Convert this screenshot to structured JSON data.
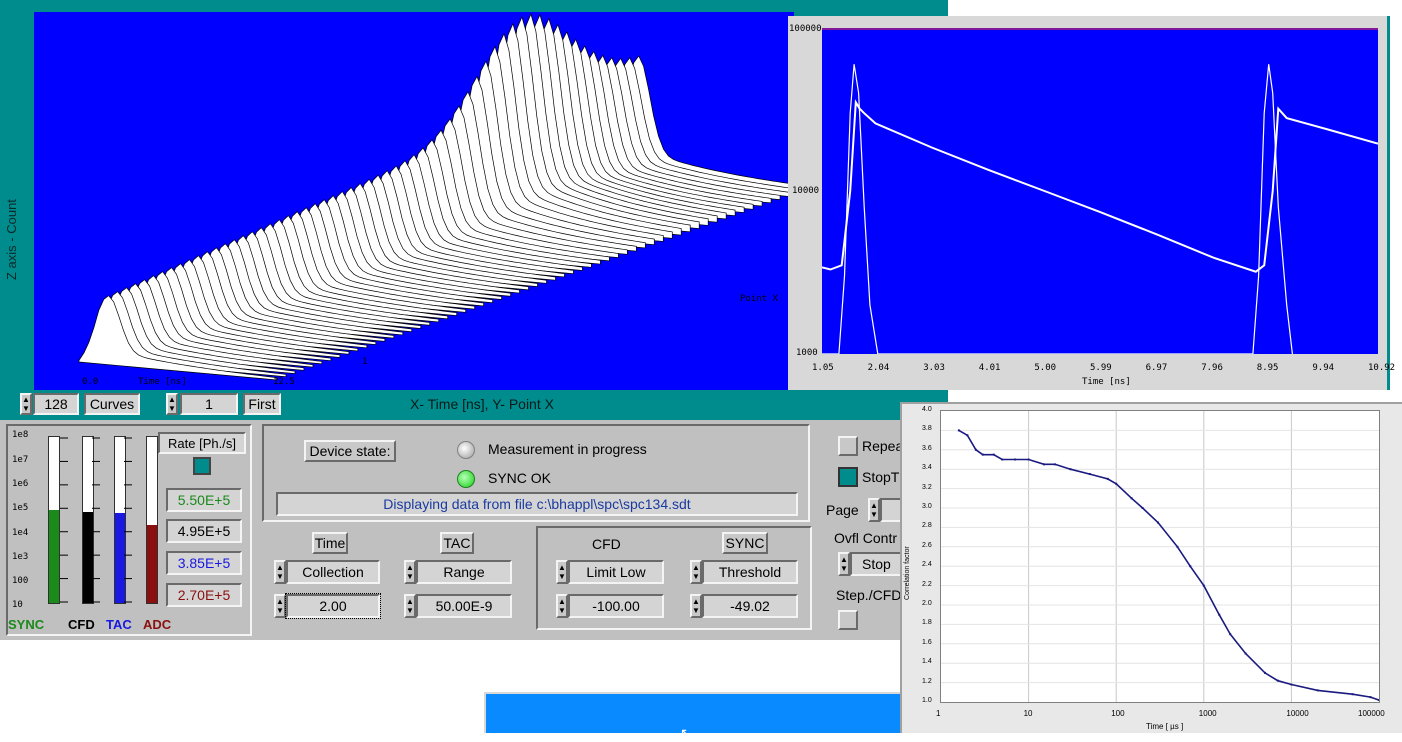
{
  "surface_plot": {
    "zaxis_label": "Z axis - Count",
    "pointx_label": "Point X",
    "tick_1": "1",
    "x_ticks": [
      "0.0",
      "Time [ns]",
      "12.5"
    ],
    "curves_value": "128",
    "curves_label": "Curves",
    "first_value": "1",
    "first_label": "First",
    "axes_caption": "X- Time [ns], Y- Point X"
  },
  "rate_meters": {
    "y_ticks": [
      "1e8",
      "1e7",
      "1e6",
      "1e5",
      "1e4",
      "1e3",
      "100",
      "10"
    ],
    "labels": [
      "SYNC",
      "CFD",
      "TAC",
      "ADC"
    ],
    "colors": [
      "#1a8a1a",
      "#000000",
      "#1818e0",
      "#8a1010"
    ],
    "levels": [
      0.56,
      0.55,
      0.54,
      0.47
    ],
    "rate_title": "Rate [Ph./s]",
    "rate_values": [
      "5.50E+5",
      "4.95E+5",
      "3.85E+5",
      "2.70E+5"
    ],
    "rate_colors": [
      "#1a8a1a",
      "#000000",
      "#1818e0",
      "#8a1010"
    ]
  },
  "device": {
    "state_button": "Device state:",
    "measurement": "Measurement in progress",
    "sync_ok": "SYNC OK",
    "file_msg": "Displaying data from file c:\\bhappl\\spc\\spc134.sdt"
  },
  "params": {
    "time_title": "Time",
    "time_mode": "Collection",
    "time_value": "2.00",
    "tac_title": "TAC",
    "tac_mode": "Range",
    "tac_value": "50.00E-9",
    "cfd_title": "CFD",
    "cfd_mode": "Limit Low",
    "cfd_value": "-100.00",
    "sync_title": "SYNC",
    "sync_mode": "Threshold",
    "sync_value": "-49.02"
  },
  "right_controls": {
    "repeat": "Repea",
    "stop": "StopT",
    "page": "Page",
    "ovfl": "Ovfl Contr",
    "ovfl_value": "Stop",
    "step": "Step./CFD"
  },
  "decay_chart": {
    "xlabel": "Time [ns]",
    "x_ticks": [
      "1.05",
      "2.04",
      "3.03",
      "4.01",
      "5.00",
      "5.99",
      "6.97",
      "7.96",
      "8.95",
      "9.94",
      "10.92"
    ],
    "y_ticks": [
      "100000",
      "10000",
      "1000"
    ]
  },
  "correlation_chart": {
    "ylabel": "Correlation factor",
    "xlabel": "Time [ µs ]",
    "y_ticks": [
      "4.0",
      "3.8",
      "3.6",
      "3.4",
      "3.2",
      "3.0",
      "2.8",
      "2.6",
      "2.4",
      "2.2",
      "2.0",
      "1.8",
      "1.6",
      "1.4",
      "1.2",
      "1.0"
    ],
    "x_ticks": [
      "1",
      "10",
      "100",
      "1000",
      "10000",
      "100000"
    ]
  },
  "chart_data": [
    {
      "type": "line",
      "xlabel": "Time [ns]",
      "ylabel": "",
      "y_scale": "log",
      "ylim": [
        1000,
        100000
      ],
      "xlim": [
        1.05,
        10.92
      ],
      "series": [
        {
          "x": [
            1.05,
            1.2,
            1.4,
            1.55,
            1.65,
            1.72,
            1.8,
            2.0,
            3.0,
            4.0,
            5.0,
            6.0,
            7.0,
            8.0,
            8.75,
            8.9,
            9.05,
            9.15,
            9.3,
            10.0,
            10.92
          ],
          "y": [
            3400,
            3300,
            3500,
            10000,
            35000,
            32000,
            30000,
            26000,
            18500,
            13500,
            10000,
            7400,
            5400,
            3900,
            3200,
            3500,
            10000,
            32000,
            28000,
            24000,
            19500
          ]
        },
        {
          "x": [
            1.05,
            1.35,
            1.45,
            1.55,
            1.62,
            1.7,
            1.8,
            1.9,
            2.04,
            8.7,
            8.8,
            8.9,
            8.98,
            9.05,
            9.15,
            9.3,
            9.4
          ],
          "y": [
            1000,
            1000,
            3000,
            30000,
            60000,
            40000,
            8000,
            2000,
            1000,
            1000,
            3000,
            30000,
            60000,
            40000,
            8000,
            2000,
            1000
          ]
        }
      ]
    },
    {
      "type": "scatter",
      "xlabel": "Time [ µs ]",
      "ylabel": "Correlation factor",
      "x_scale": "log",
      "xlim": [
        1,
        100000
      ],
      "ylim": [
        1.0,
        4.0
      ],
      "series": [
        {
          "x": [
            1.6,
            2,
            2.5,
            3,
            4,
            5,
            7,
            10,
            15,
            20,
            30,
            50,
            80,
            100,
            150,
            200,
            300,
            500,
            700,
            1000,
            1500,
            2000,
            3000,
            5000,
            7000,
            10000,
            20000,
            50000,
            80000,
            100000
          ],
          "y": [
            3.8,
            3.75,
            3.6,
            3.55,
            3.55,
            3.5,
            3.5,
            3.5,
            3.45,
            3.45,
            3.4,
            3.35,
            3.3,
            3.25,
            3.1,
            3.0,
            2.85,
            2.6,
            2.4,
            2.2,
            1.9,
            1.7,
            1.5,
            1.3,
            1.22,
            1.18,
            1.12,
            1.08,
            1.05,
            1.02
          ]
        }
      ]
    }
  ]
}
